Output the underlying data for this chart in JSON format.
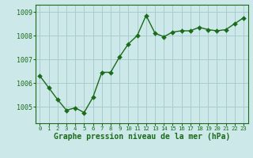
{
  "x": [
    0,
    1,
    2,
    3,
    4,
    5,
    6,
    7,
    8,
    9,
    10,
    11,
    12,
    13,
    14,
    15,
    16,
    17,
    18,
    19,
    20,
    21,
    22,
    23
  ],
  "y": [
    1006.3,
    1005.8,
    1005.3,
    1004.85,
    1004.95,
    1004.75,
    1005.4,
    1006.45,
    1006.45,
    1007.1,
    1007.65,
    1008.0,
    1008.85,
    1008.1,
    1007.95,
    1008.15,
    1008.2,
    1008.2,
    1008.35,
    1008.25,
    1008.2,
    1008.25,
    1008.5,
    1008.75
  ],
  "line_color": "#1a6b1a",
  "marker_color": "#1a6b1a",
  "bg_color": "#cce8e8",
  "grid_color": "#aacccc",
  "xlabel": "Graphe pression niveau de la mer (hPa)",
  "xlabel_color": "#1a6b1a",
  "yticks": [
    1005,
    1006,
    1007,
    1008,
    1009
  ],
  "ylim": [
    1004.3,
    1009.3
  ],
  "xlim": [
    -0.5,
    23.5
  ],
  "xticks": [
    0,
    1,
    2,
    3,
    4,
    5,
    6,
    7,
    8,
    9,
    10,
    11,
    12,
    13,
    14,
    15,
    16,
    17,
    18,
    19,
    20,
    21,
    22,
    23
  ],
  "xtick_labels": [
    "0",
    "1",
    "2",
    "3",
    "4",
    "5",
    "6",
    "7",
    "8",
    "9",
    "10",
    "11",
    "12",
    "13",
    "14",
    "15",
    "16",
    "17",
    "18",
    "19",
    "20",
    "21",
    "22",
    "23"
  ],
  "tick_color": "#1a6b1a",
  "axis_color": "#1a6b1a",
  "line_width": 1.0,
  "marker_size": 3.0
}
